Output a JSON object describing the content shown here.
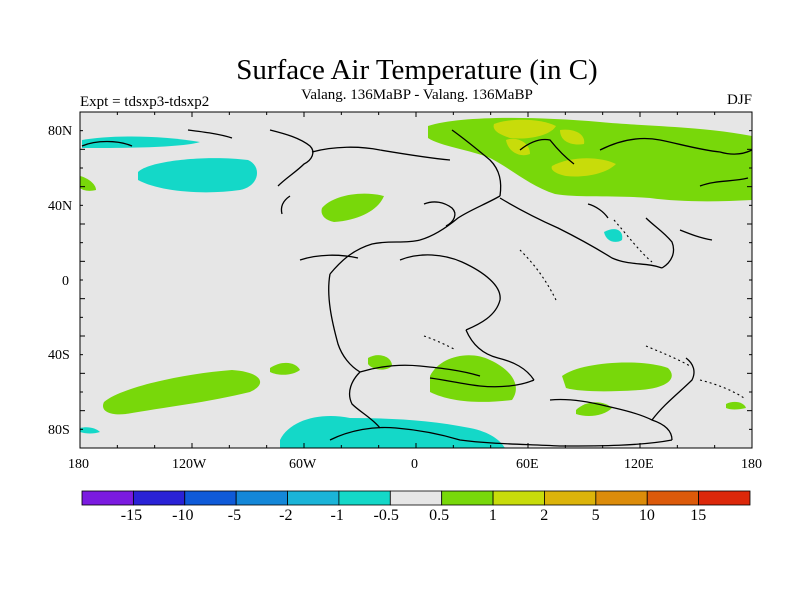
{
  "title": "Surface Air Temperature (in C)",
  "subtitle": "Valang. 136MaBP - Valang. 136MaBP",
  "experiment": "Expt = tdsxp3-tdsxp2",
  "season": "DJF",
  "axes": {
    "y_ticks": [
      "80N",
      "40N",
      "0",
      "40S",
      "80S"
    ],
    "x_ticks": [
      "180",
      "120W",
      "60W",
      "0",
      "60E",
      "120E",
      "180"
    ]
  },
  "colorbar": {
    "labels": [
      "-15",
      "-10",
      "-5",
      "-2",
      "-1",
      "-0.5",
      "0.5",
      "1",
      "2",
      "5",
      "10",
      "15"
    ],
    "colors": [
      "#7b1be0",
      "#2a22d6",
      "#0f5ad8",
      "#1487d8",
      "#1bb4d8",
      "#14d8c8",
      "#e6e6e6",
      "#78d80a",
      "#c8dc0a",
      "#dcb40a",
      "#dc8c0a",
      "#dc5a0a",
      "#dc280a"
    ]
  },
  "colors": {
    "background": "#e6e6e6",
    "positive_1": "#78d80a",
    "positive_2": "#c8dc0a",
    "negative_1": "#14d8c8"
  }
}
